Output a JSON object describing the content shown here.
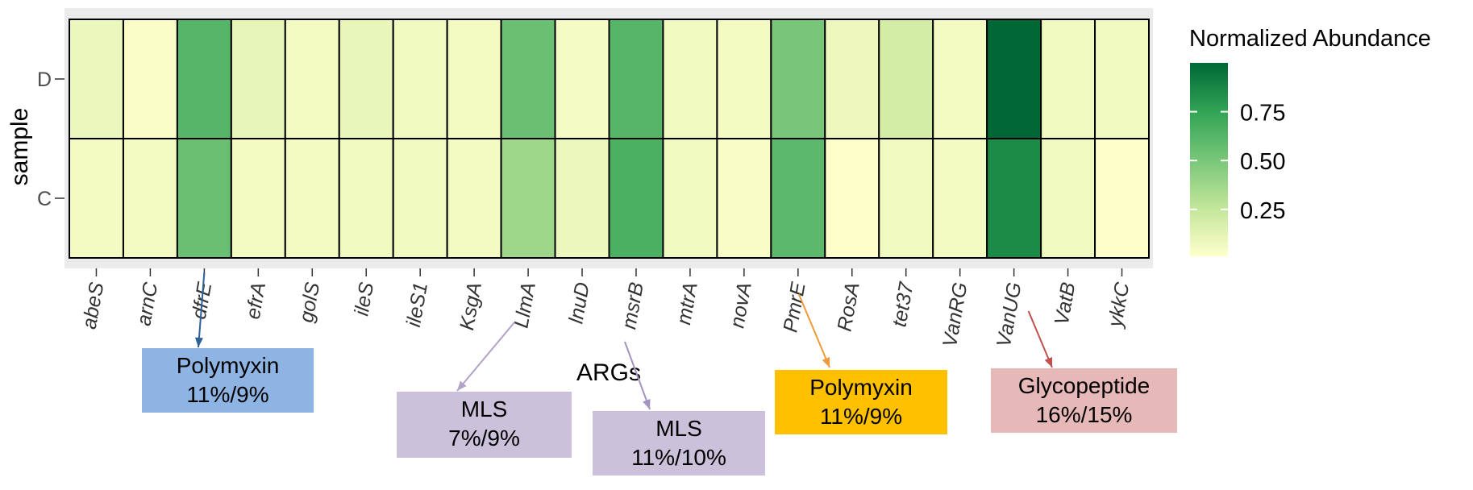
{
  "chart_data": {
    "type": "heatmap",
    "xlabel": "ARGs",
    "ylabel": "sample",
    "rows": [
      "D",
      "C"
    ],
    "columns": [
      "abeS",
      "arnC",
      "dfrE",
      "efrA",
      "golS",
      "ileS",
      "ileS1",
      "KsgA",
      "LlmA",
      "lnuD",
      "msrB",
      "mtrA",
      "novA",
      "PmrE",
      "RosA",
      "tet37",
      "VanRG",
      "VanUG",
      "VatB",
      "ykkC"
    ],
    "values": [
      [
        0.08,
        0.02,
        0.62,
        0.1,
        0.05,
        0.09,
        0.06,
        0.05,
        0.55,
        0.04,
        0.62,
        0.06,
        0.05,
        0.5,
        0.07,
        0.18,
        0.05,
        1.0,
        0.06,
        0.06
      ],
      [
        0.05,
        0.05,
        0.55,
        0.05,
        0.05,
        0.06,
        0.06,
        0.05,
        0.37,
        0.08,
        0.66,
        0.06,
        0.03,
        0.6,
        0.01,
        0.06,
        0.05,
        0.85,
        0.06,
        0.01
      ]
    ],
    "legend": {
      "title": "Normalized Abundance",
      "ticks": [
        0.25,
        0.5,
        0.75
      ],
      "tick_labels": [
        "0.25",
        "0.50",
        "0.75"
      ],
      "range": [
        0,
        1
      ],
      "position": "right",
      "colors": [
        "#ffffcc",
        "#c2e699",
        "#78c679",
        "#31a354",
        "#006837"
      ]
    },
    "grid": true,
    "panel_background": "#ebebeb"
  },
  "annotations": [
    {
      "gene": "dfrE",
      "name": "Polymyxin",
      "value": "11%/9%",
      "box_color": "#8eb4e3",
      "arrow_color": "#2e5f99"
    },
    {
      "gene": "LlmA",
      "name": "MLS",
      "value": "7%/9%",
      "box_color": "#ccc1da",
      "arrow_color": "#b3a2c7"
    },
    {
      "gene": "msrB",
      "name": "MLS",
      "value": "11%/10%",
      "box_color": "#ccc1da",
      "arrow_color": "#a592bd"
    },
    {
      "gene": "PmrE",
      "name": "Polymyxin",
      "value": "11%/9%",
      "box_color": "#ffc000",
      "arrow_color": "#ed9a3a"
    },
    {
      "gene": "VanUG",
      "name": "Glycopeptide",
      "value": "16%/15%",
      "box_color": "#e6b9b8",
      "arrow_color": "#c0504d"
    }
  ]
}
